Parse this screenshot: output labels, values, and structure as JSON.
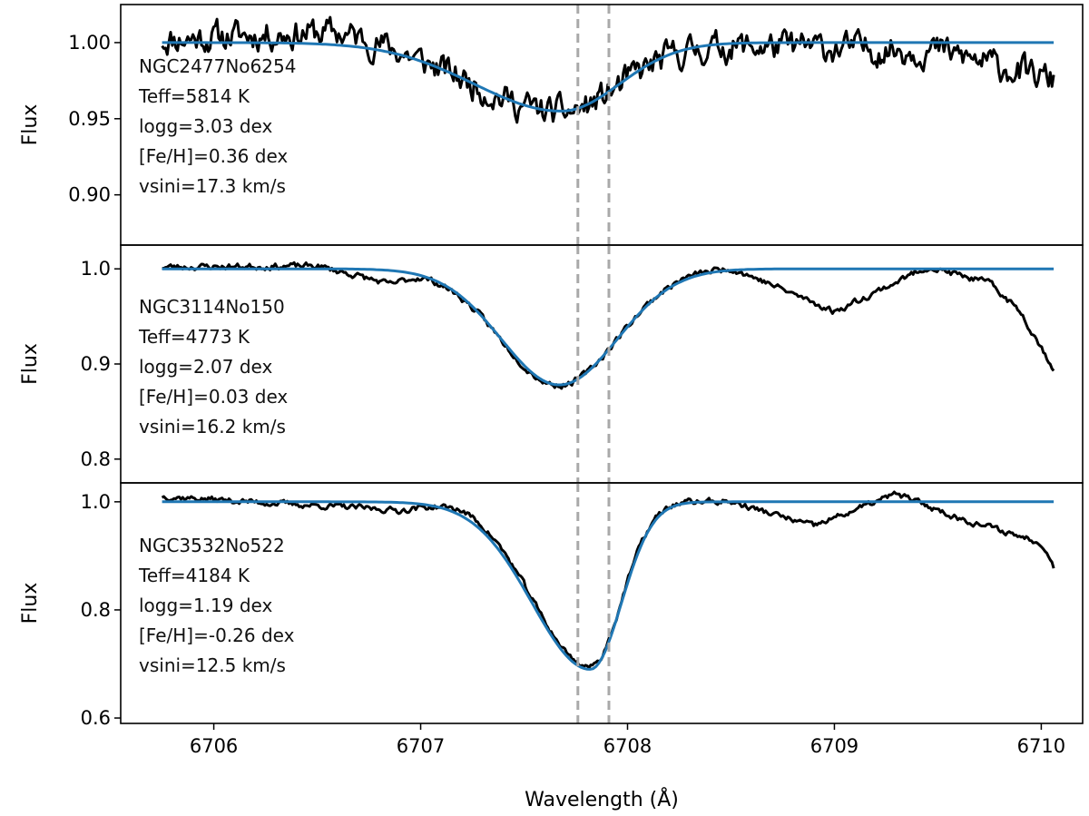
{
  "chart_data": {
    "type": "line",
    "shared_x": {
      "label": "Wavelength (Å)",
      "range": [
        6705.55,
        6710.2
      ],
      "ticks": [
        6706,
        6707,
        6708,
        6709,
        6710
      ],
      "tick_labels": [
        "6706",
        "6707",
        "6708",
        "6709",
        "6710"
      ]
    },
    "reference_lines": {
      "style": "dashed",
      "color": "#a9a9a9",
      "x": [
        6707.76,
        6707.91
      ]
    },
    "colors": {
      "observed": "#000000",
      "model": "#1f77b4"
    },
    "panels": [
      {
        "id": "p1",
        "ylabel": "Flux",
        "ylim": [
          0.867,
          1.025
        ],
        "yticks": [
          0.9,
          0.95,
          1.0
        ],
        "ytick_labels": [
          "0.90",
          "0.95",
          "1.00"
        ],
        "star": "NGC2477No6254",
        "teff": "Teff=5814 K",
        "logg": "logg=3.03 dex",
        "feh": "[Fe/H]=0.36 dex",
        "vsini": "vsini=17.3 km/s",
        "model": {
          "center": 6707.68,
          "depth": 0.045,
          "sigma_blue": 0.42,
          "sigma_red": 0.28
        },
        "observed_shape": {
          "cont": [
            [
              6705.75,
              1.002
            ],
            [
              6706.6,
              1.008
            ],
            [
              6707.0,
              1.0
            ],
            [
              6708.5,
              0.998
            ],
            [
              6709.5,
              0.995
            ],
            [
              6710.06,
              0.975
            ]
          ],
          "features": [],
          "noise": 0.018,
          "seed": 11
        }
      },
      {
        "id": "p2",
        "ylabel": "Flux",
        "ylim": [
          0.775,
          1.025
        ],
        "yticks": [
          0.8,
          0.9,
          1.0
        ],
        "ytick_labels": [
          "0.8",
          "0.9",
          "1.0"
        ],
        "star": "NGC3114No150",
        "teff": "Teff=4773 K",
        "logg": "logg=2.07 dex",
        "feh": "[Fe/H]=0.03 dex",
        "vsini": "vsini=16.2 km/s",
        "model": {
          "center": 6707.67,
          "depth": 0.122,
          "sigma_blue": 0.28,
          "sigma_red": 0.28
        },
        "observed_shape": {
          "cont": [
            [
              6705.75,
              1.002
            ],
            [
              6706.5,
              1.003
            ],
            [
              6706.85,
              0.985
            ],
            [
              6707.0,
              0.998
            ],
            [
              6708.5,
              1.002
            ],
            [
              6709.0,
              0.955
            ],
            [
              6709.45,
              1.002
            ],
            [
              6709.75,
              0.985
            ],
            [
              6709.9,
              0.955
            ],
            [
              6710.06,
              0.895
            ]
          ],
          "features": [],
          "noise": 0.006,
          "seed": 23
        }
      },
      {
        "id": "p3",
        "ylabel": "Flux",
        "ylim": [
          0.59,
          1.035
        ],
        "yticks": [
          0.6,
          0.8,
          1.0
        ],
        "ytick_labels": [
          "0.6",
          "0.8",
          "1.0"
        ],
        "star": "NGC3532No522",
        "teff": "Teff=4184 K",
        "logg": "logg=1.19 dex",
        "feh": "[Fe/H]=-0.26 dex",
        "vsini": "vsini=12.5 km/s",
        "model": {
          "center": 6707.82,
          "depth": 0.31,
          "sigma_blue": 0.28,
          "sigma_red": 0.15
        },
        "observed_shape": {
          "cont": [
            [
              6705.75,
              1.01
            ],
            [
              6706.4,
              0.995
            ],
            [
              6706.9,
              0.985
            ],
            [
              6707.2,
              1.01
            ],
            [
              6708.5,
              1.0
            ],
            [
              6708.9,
              0.955
            ],
            [
              6709.3,
              1.015
            ],
            [
              6709.6,
              0.97
            ],
            [
              6710.0,
              0.925
            ],
            [
              6710.06,
              0.88
            ]
          ],
          "features": [],
          "noise": 0.01,
          "seed": 37
        }
      }
    ]
  }
}
